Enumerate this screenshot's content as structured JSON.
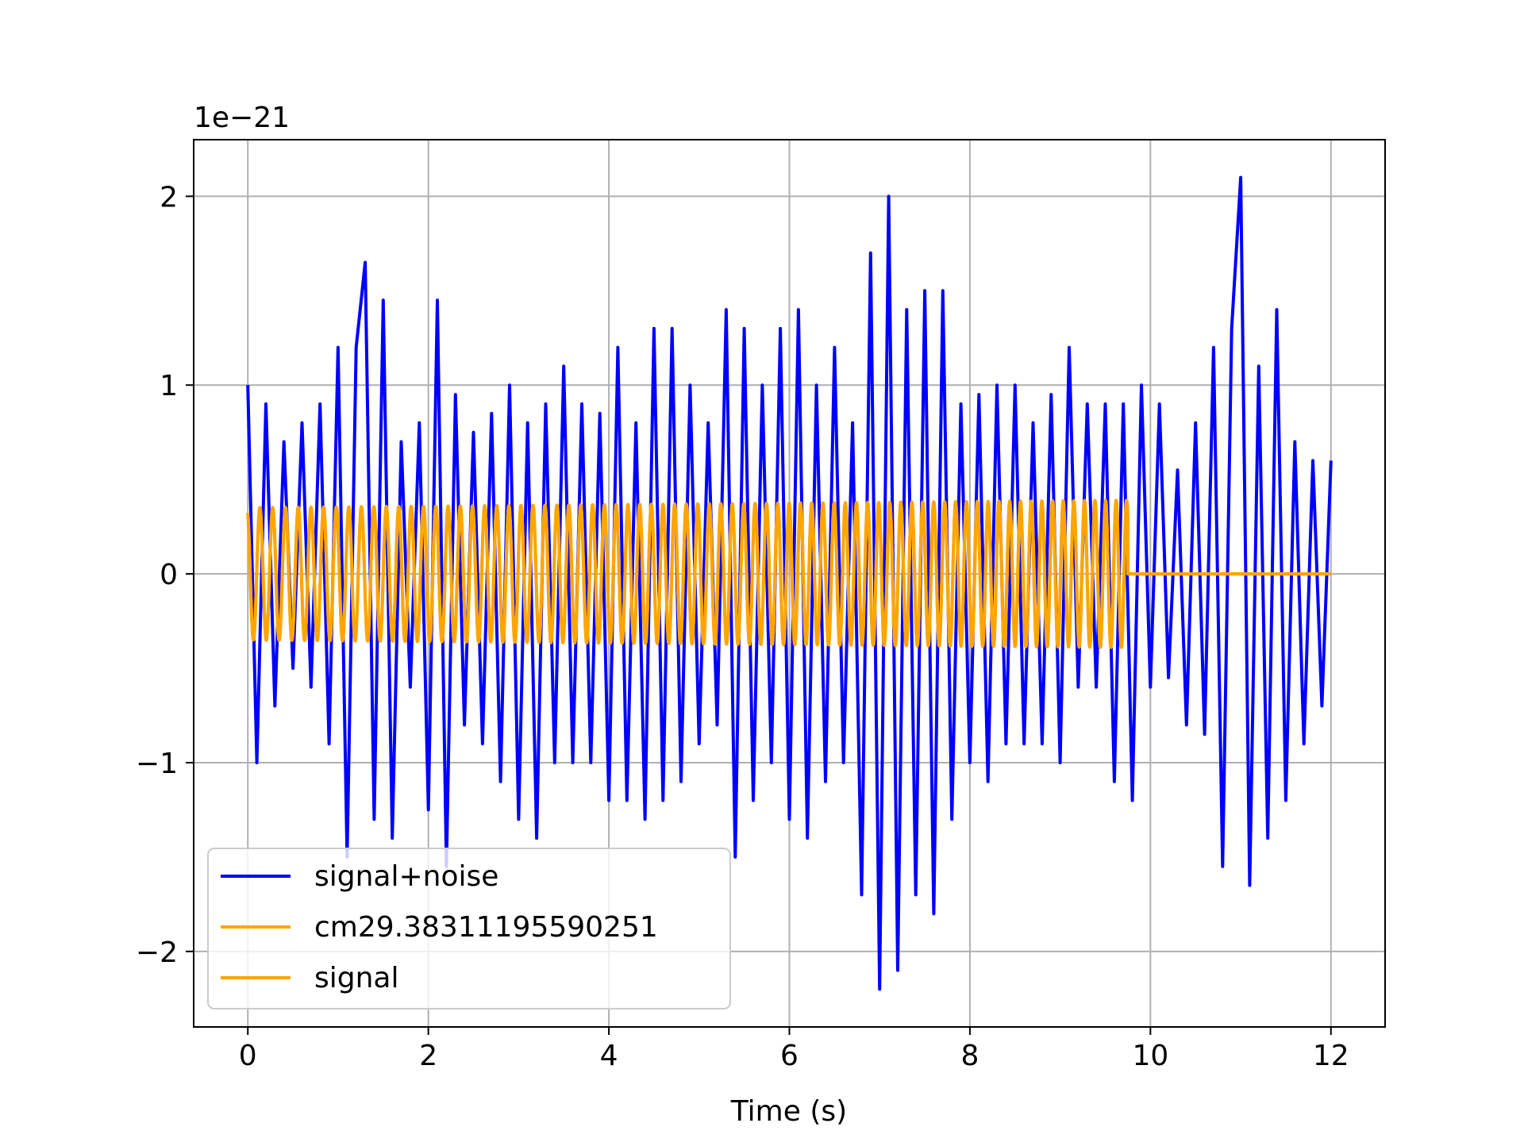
{
  "chart_data": {
    "type": "line",
    "title": "",
    "xlabel": "Time (s)",
    "ylabel": "",
    "offset_label": "1e−21",
    "scale": 1e-21,
    "xlim": [
      -0.6,
      12.6
    ],
    "ylim": [
      -2.4,
      2.3
    ],
    "xticks": [
      0,
      2,
      4,
      6,
      8,
      10,
      12
    ],
    "xtick_labels": [
      "0",
      "2",
      "4",
      "6",
      "8",
      "10",
      "12"
    ],
    "yticks": [
      -2,
      -1,
      0,
      1,
      2
    ],
    "ytick_labels": [
      "−2",
      "−1",
      "0",
      "1",
      "2"
    ],
    "grid": true,
    "legend_position": "lower-left",
    "colors": {
      "signal_noise": "#0000ff",
      "template": "#ffa500",
      "signal": "#ffa500",
      "grid": "#b0b0b0"
    },
    "series": [
      {
        "name": "signal+noise",
        "color": "#0000ff",
        "sampling": "approximate envelope of noisy trace, ~0.1 s spacing",
        "x": [
          0.0,
          0.1,
          0.2,
          0.3,
          0.4,
          0.5,
          0.6,
          0.7,
          0.8,
          0.9,
          1.0,
          1.1,
          1.2,
          1.3,
          1.4,
          1.5,
          1.6,
          1.7,
          1.8,
          1.9,
          2.0,
          2.1,
          2.2,
          2.3,
          2.4,
          2.5,
          2.6,
          2.7,
          2.8,
          2.9,
          3.0,
          3.1,
          3.2,
          3.3,
          3.4,
          3.5,
          3.6,
          3.7,
          3.8,
          3.9,
          4.0,
          4.1,
          4.2,
          4.3,
          4.4,
          4.5,
          4.6,
          4.7,
          4.8,
          4.9,
          5.0,
          5.1,
          5.2,
          5.3,
          5.4,
          5.5,
          5.6,
          5.7,
          5.8,
          5.9,
          6.0,
          6.1,
          6.2,
          6.3,
          6.4,
          6.5,
          6.6,
          6.7,
          6.8,
          6.9,
          7.0,
          7.1,
          7.2,
          7.3,
          7.4,
          7.5,
          7.6,
          7.7,
          7.8,
          7.9,
          8.0,
          8.1,
          8.2,
          8.3,
          8.4,
          8.5,
          8.6,
          8.7,
          8.8,
          8.9,
          9.0,
          9.1,
          9.2,
          9.3,
          9.4,
          9.5,
          9.6,
          9.7,
          9.8,
          9.9,
          10.0,
          10.1,
          10.2,
          10.3,
          10.4,
          10.5,
          10.6,
          10.7,
          10.8,
          10.9,
          11.0,
          11.1,
          11.2,
          11.3,
          11.4,
          11.5,
          11.6,
          11.7,
          11.8,
          11.9,
          12.0
        ],
        "y": [
          1.0,
          -1.0,
          0.9,
          -0.7,
          0.7,
          -0.5,
          0.8,
          -0.6,
          0.9,
          -0.9,
          1.2,
          -1.5,
          1.2,
          1.65,
          -1.3,
          1.45,
          -1.4,
          0.7,
          -0.6,
          0.8,
          -1.25,
          1.45,
          -1.55,
          0.95,
          -0.8,
          0.75,
          -0.9,
          0.85,
          -1.1,
          1.0,
          -1.3,
          0.8,
          -1.4,
          0.9,
          -1.0,
          1.1,
          -1.0,
          0.9,
          -1.0,
          0.85,
          -1.2,
          1.2,
          -1.2,
          0.8,
          -1.3,
          1.3,
          -1.2,
          1.3,
          -1.1,
          1.0,
          -0.9,
          0.8,
          -0.8,
          1.4,
          -1.5,
          1.3,
          -1.2,
          1.0,
          -1.0,
          1.3,
          -1.3,
          1.4,
          -1.4,
          1.0,
          -1.1,
          1.2,
          -1.0,
          0.8,
          -1.7,
          1.7,
          -2.2,
          2.0,
          -2.1,
          1.4,
          -1.7,
          1.5,
          -1.8,
          1.5,
          -1.3,
          0.9,
          -1.0,
          0.95,
          -1.1,
          1.0,
          -0.9,
          1.0,
          -0.9,
          0.8,
          -0.9,
          0.95,
          -1.0,
          1.2,
          -0.6,
          0.9,
          -0.6,
          0.9,
          -1.1,
          0.9,
          -1.2,
          1.0,
          -0.6,
          0.9,
          -0.55,
          0.55,
          -0.8,
          0.8,
          -0.85,
          1.2,
          -1.55,
          1.3,
          2.1,
          -1.65,
          1.1,
          -1.4,
          1.4,
          -1.2,
          0.7,
          -0.9,
          0.6,
          -0.7,
          0.6
        ]
      },
      {
        "name": "cm29.38311195590251",
        "color": "#ffa500",
        "sinusoid": {
          "t_start": 0.0,
          "t_end": 9.75,
          "f_start_hz": 7.0,
          "f_end_hz": 8.6,
          "amp_start": 0.35,
          "amp_end": 0.39,
          "flat_after": 0.0
        },
        "x_end": 12.0
      },
      {
        "name": "signal",
        "color": "#ffa500",
        "sinusoid": {
          "t_start": 0.0,
          "t_end": 9.75,
          "f_start_hz": 7.0,
          "f_end_hz": 8.6,
          "amp_start": 0.35,
          "amp_end": 0.39,
          "flat_after": 0.0
        },
        "x_end": 12.0
      }
    ]
  }
}
